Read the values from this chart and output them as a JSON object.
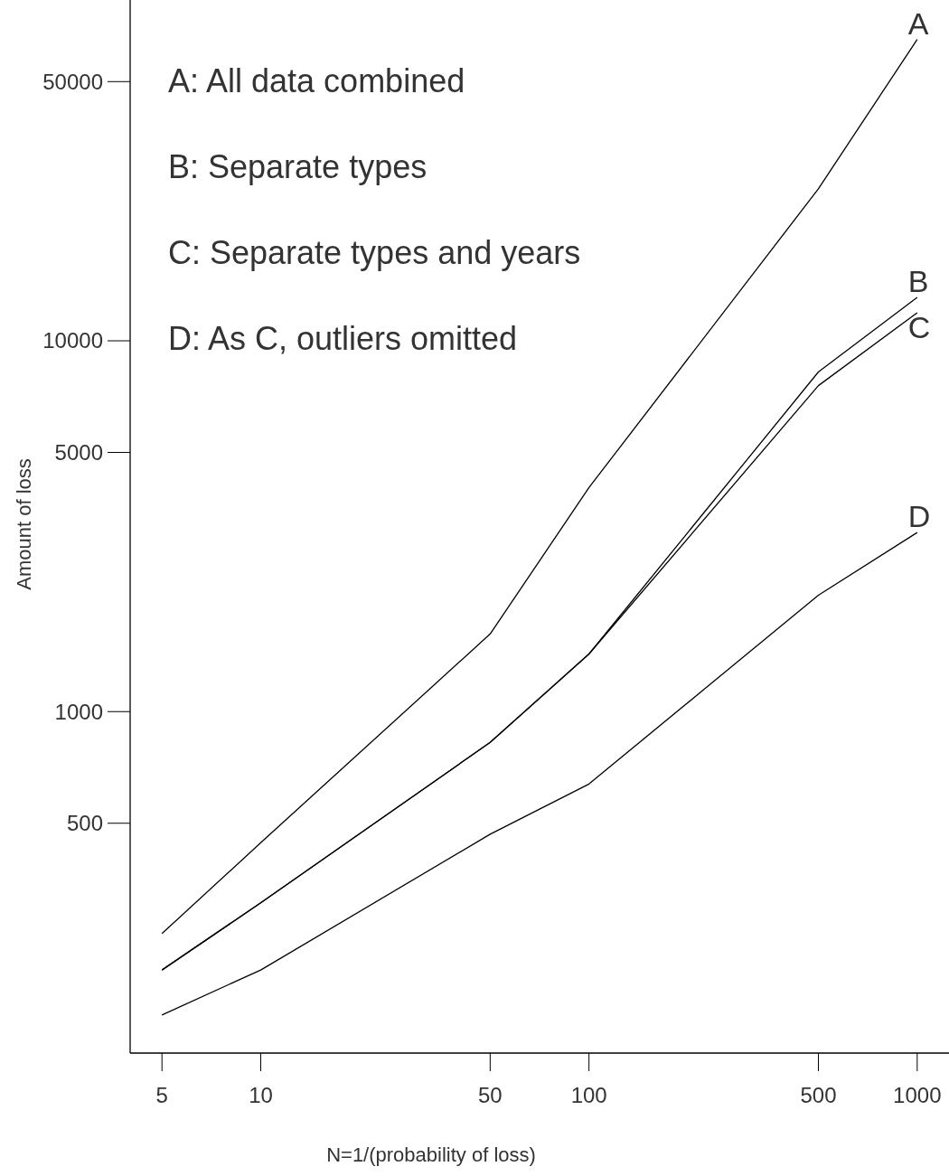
{
  "chart_data": {
    "type": "line",
    "xlabel": "N=1/(probability of loss)",
    "ylabel": "Amount of loss",
    "x": [
      5,
      10,
      50,
      100,
      500,
      1000
    ],
    "series": [
      {
        "name": "A",
        "color": "#000000",
        "values": [
          252,
          443,
          1620,
          4020,
          25700,
          65000
        ]
      },
      {
        "name": "B",
        "color": "#000000",
        "values": [
          201,
          305,
          826,
          1430,
          8240,
          13100
        ]
      },
      {
        "name": "C",
        "color": "#000000",
        "values": [
          201,
          305,
          826,
          1430,
          7570,
          11900
        ]
      },
      {
        "name": "D",
        "color": "#000000",
        "values": [
          152,
          201,
          467,
          638,
          2060,
          3040
        ]
      }
    ],
    "log": "xy",
    "xlim": [
      4,
      1250
    ],
    "ylim": [
      120,
      83000
    ],
    "xticks": [
      5,
      10,
      50,
      100,
      500,
      1000
    ],
    "yticks": [
      500,
      1000,
      5000,
      10000,
      50000
    ],
    "annotations": [
      "A: All data combined",
      "B: Separate types",
      "C: Separate types and years",
      "D: As C, outliers omitted"
    ],
    "grid": false,
    "marker": "none",
    "line_style": "solid"
  }
}
